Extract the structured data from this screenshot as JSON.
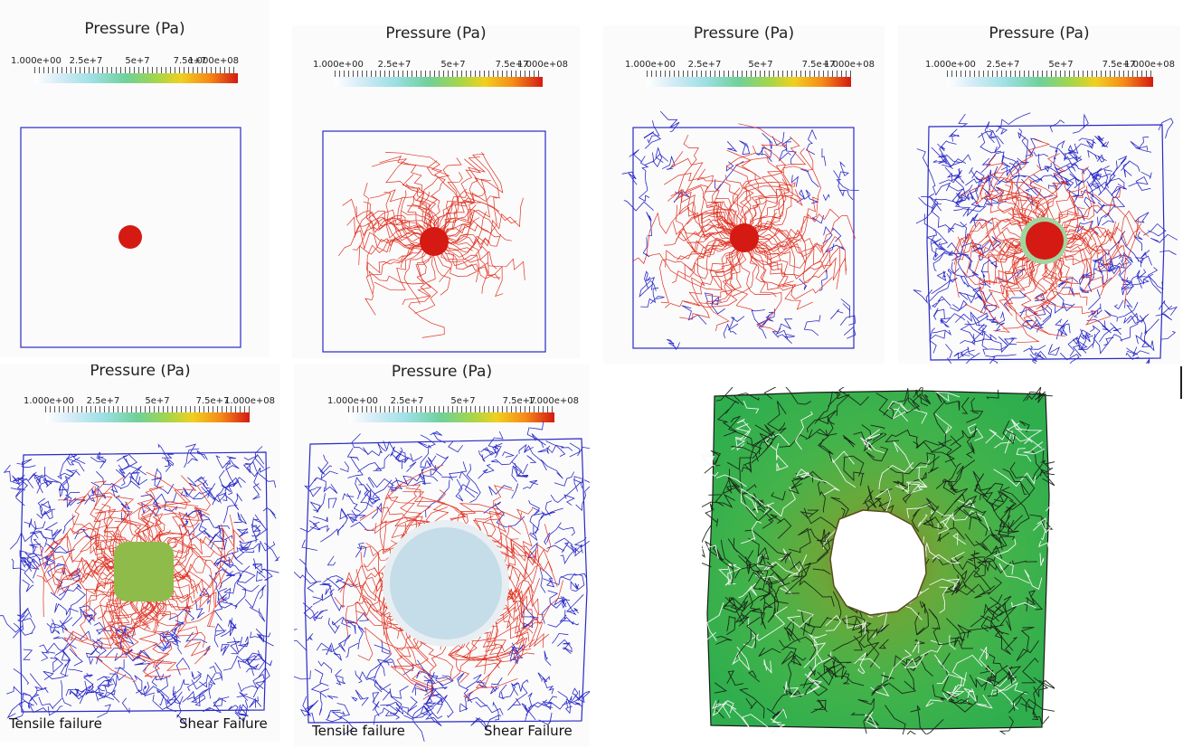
{
  "colorbar": {
    "title": "Pressure (Pa)",
    "ticks": [
      "1.000e+00",
      "2.5e+7",
      "5e+7",
      "7.5e+7",
      "1.000e+08"
    ]
  },
  "captions": {
    "tensile": "Tensile failure",
    "shear": "Shear  Failure"
  },
  "colors": {
    "tensile_crack": "#e03020",
    "shear_crack": "#2a2ac8",
    "high_pressure": "#d41a12",
    "fragment_green": "#3ab54a"
  }
}
